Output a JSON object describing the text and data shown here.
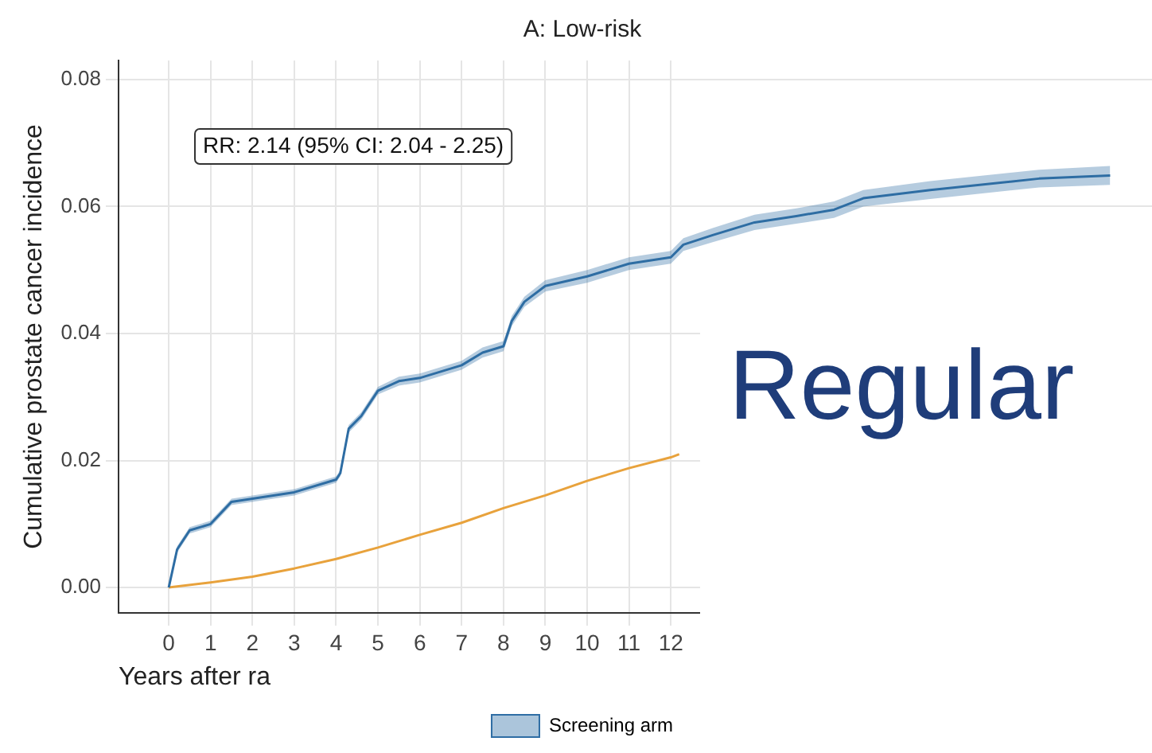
{
  "chart_data": {
    "type": "line",
    "title": "A: Low-risk",
    "xlabel": "Years after ra",
    "ylabel": "Cumulative prostate cancer incidence",
    "annotations": [
      "RR: 2.14 (95% CI: 2.04 - 2.25)",
      "Regular"
    ],
    "series": [
      {
        "name": "Screening arm",
        "color": "#2e6da4",
        "x": [
          0,
          0.2,
          0.5,
          1,
          1.5,
          2,
          3,
          4,
          4.1,
          4.3,
          4.6,
          5,
          5.5,
          6,
          7,
          7.5,
          8,
          8.2,
          8.5,
          9,
          10,
          11,
          12,
          12.3,
          13,
          14,
          15,
          15.9,
          16.6,
          18.2,
          20.8,
          22.5
        ],
        "values": [
          0,
          0.006,
          0.009,
          0.01,
          0.0135,
          0.014,
          0.015,
          0.017,
          0.018,
          0.025,
          0.027,
          0.031,
          0.0325,
          0.033,
          0.035,
          0.037,
          0.038,
          0.042,
          0.045,
          0.0475,
          0.049,
          0.051,
          0.052,
          0.054,
          0.0555,
          0.0575,
          0.0585,
          0.0595,
          0.0613,
          0.0626,
          0.0644,
          0.0649
        ],
        "lower": [
          0,
          0.0055,
          0.0085,
          0.0095,
          0.013,
          0.0135,
          0.0145,
          0.0165,
          0.0175,
          0.0244,
          0.0264,
          0.0304,
          0.0318,
          0.0323,
          0.0343,
          0.0362,
          0.0372,
          0.0412,
          0.0442,
          0.0466,
          0.048,
          0.05,
          0.051,
          0.053,
          0.0544,
          0.0563,
          0.0573,
          0.0582,
          0.06,
          0.0612,
          0.063,
          0.0634
        ],
        "upper": [
          0,
          0.0065,
          0.0095,
          0.0105,
          0.014,
          0.0145,
          0.0155,
          0.0175,
          0.0185,
          0.0256,
          0.0276,
          0.0316,
          0.0332,
          0.0337,
          0.0357,
          0.0378,
          0.0388,
          0.0428,
          0.0458,
          0.0484,
          0.05,
          0.052,
          0.053,
          0.055,
          0.0566,
          0.0587,
          0.0597,
          0.0608,
          0.0626,
          0.064,
          0.0658,
          0.0664
        ]
      },
      {
        "color": "#e8a23c",
        "x": [
          0,
          1,
          2,
          3,
          4,
          5,
          6,
          7,
          8,
          9,
          10,
          11,
          12,
          12.2
        ],
        "values": [
          0,
          0.0008,
          0.0017,
          0.003,
          0.0045,
          0.0063,
          0.0083,
          0.0102,
          0.0125,
          0.0145,
          0.0168,
          0.0188,
          0.0205,
          0.021
        ]
      }
    ],
    "xlim": [
      -1.2,
      23.5
    ],
    "xticks": [
      0,
      1,
      2,
      3,
      4,
      5,
      6,
      7,
      8,
      9,
      10,
      11,
      12
    ],
    "ylim": [
      -0.004,
      0.083
    ],
    "yticks": [
      {
        "value": 0,
        "label": "0.00"
      },
      {
        "value": 0.02,
        "label": "0.02"
      },
      {
        "value": 0.04,
        "label": "0.04"
      },
      {
        "value": 0.06,
        "label": "0.06"
      },
      {
        "value": 0.08,
        "label": "0.08"
      }
    ],
    "grid": true,
    "legend": "bottom",
    "marker": "none",
    "line_style": "solid"
  }
}
